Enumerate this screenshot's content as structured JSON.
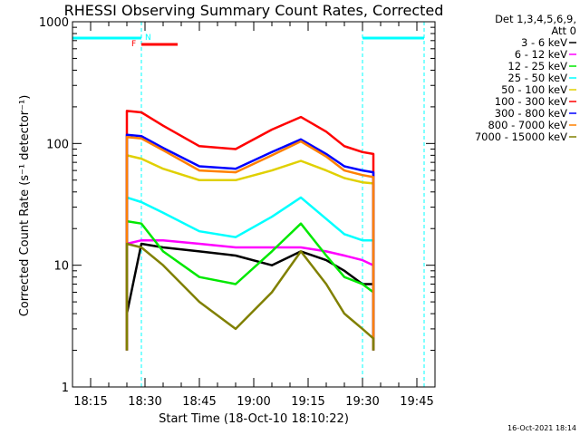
{
  "chart_data": {
    "type": "line",
    "title": "RHESSI Observing Summary Count Rates, Corrected",
    "xlabel": "Start Time (18-Oct-10 18:10:22)",
    "ylabel": "Corrected Count Rate (s⁻¹ detector⁻¹)",
    "yscale": "log",
    "ylim": [
      1,
      1000
    ],
    "xlim": [
      "18:10",
      "19:50"
    ],
    "x_ticks": [
      "18:15",
      "18:30",
      "18:45",
      "19:00",
      "19:15",
      "19:30",
      "19:45"
    ],
    "y_ticks": [
      "1",
      "10",
      "100",
      "1000"
    ],
    "x_times": [
      "18:25",
      "18:29",
      "18:35",
      "18:45",
      "18:55",
      "19:05",
      "19:13",
      "19:20",
      "19:25",
      "19:30",
      "19:33"
    ],
    "legend_header": [
      "Det 1,3,4,5,6,9,",
      "Att 0"
    ],
    "legend_position": "top-right",
    "series": [
      {
        "name": "3 - 6 keV",
        "color": "#000000",
        "values": [
          4,
          15,
          14,
          13,
          12,
          10,
          13,
          11,
          9,
          7,
          7
        ]
      },
      {
        "name": "6 - 12 keV",
        "color": "#ff00ff",
        "values": [
          15,
          16,
          16,
          15,
          14,
          14,
          14,
          13,
          12,
          11,
          10
        ]
      },
      {
        "name": "12 - 25 keV",
        "color": "#00e800",
        "values": [
          23,
          22,
          13,
          8,
          7,
          13,
          22,
          12,
          8,
          7,
          6
        ]
      },
      {
        "name": "25 - 50 keV",
        "color": "#00ffff",
        "values": [
          36,
          33,
          27,
          19,
          17,
          25,
          36,
          24,
          18,
          16,
          16
        ]
      },
      {
        "name": "50 - 100 keV",
        "color": "#e0d000",
        "values": [
          80,
          75,
          62,
          50,
          50,
          60,
          72,
          60,
          52,
          48,
          47
        ]
      },
      {
        "name": "100 - 300 keV",
        "color": "#ff0000",
        "values": [
          185,
          180,
          140,
          95,
          90,
          130,
          165,
          125,
          95,
          85,
          82
        ]
      },
      {
        "name": "300 - 800 keV",
        "color": "#0000ff",
        "values": [
          118,
          115,
          92,
          65,
          62,
          85,
          108,
          82,
          65,
          60,
          58
        ]
      },
      {
        "name": "800 - 7000 keV",
        "color": "#ff8000",
        "values": [
          113,
          110,
          88,
          60,
          58,
          80,
          104,
          78,
          60,
          55,
          53
        ]
      },
      {
        "name": "7000 - 15000 keV",
        "color": "#808000",
        "values": [
          15,
          14,
          10,
          5,
          3,
          6,
          13,
          7,
          4,
          3,
          2.5
        ]
      }
    ],
    "flags": [
      {
        "label": "N",
        "color": "#00ffff",
        "segments": [
          [
            "18:10",
            "18:29"
          ],
          [
            "19:30",
            "19:47"
          ]
        ]
      },
      {
        "label": "F",
        "color": "#ff0000",
        "segments": [
          [
            "18:29",
            "18:39"
          ]
        ]
      }
    ],
    "vertical_markers": [
      "18:29",
      "19:30",
      "19:47"
    ]
  },
  "footer": {
    "timestamp": "16-Oct-2021 18:14"
  }
}
